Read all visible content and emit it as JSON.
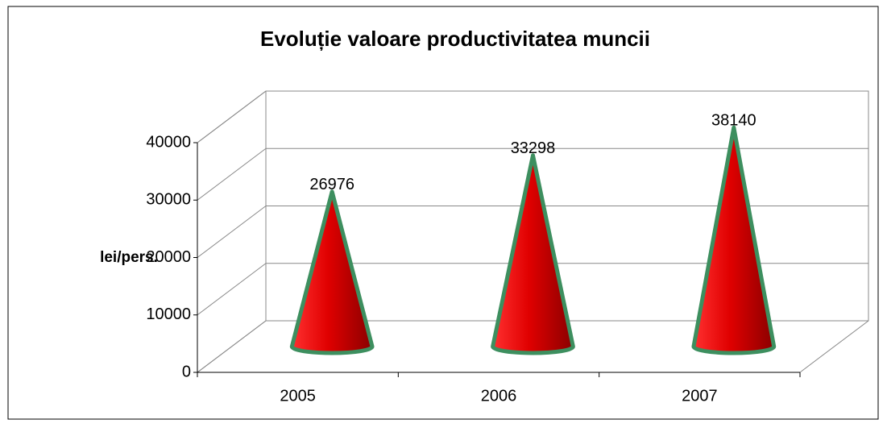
{
  "chart_data": {
    "type": "cone",
    "title": "Evoluție valoare productivitatea muncii",
    "y_label": "lei/pers.",
    "categories": [
      "2005",
      "2006",
      "2007"
    ],
    "values": [
      26976,
      33298,
      38140
    ],
    "color": "#e00000",
    "edge_color": "#3d8f5f",
    "ylim": [
      0,
      40000
    ],
    "yticks": [
      0,
      10000,
      20000,
      30000,
      40000
    ],
    "grid": true
  }
}
